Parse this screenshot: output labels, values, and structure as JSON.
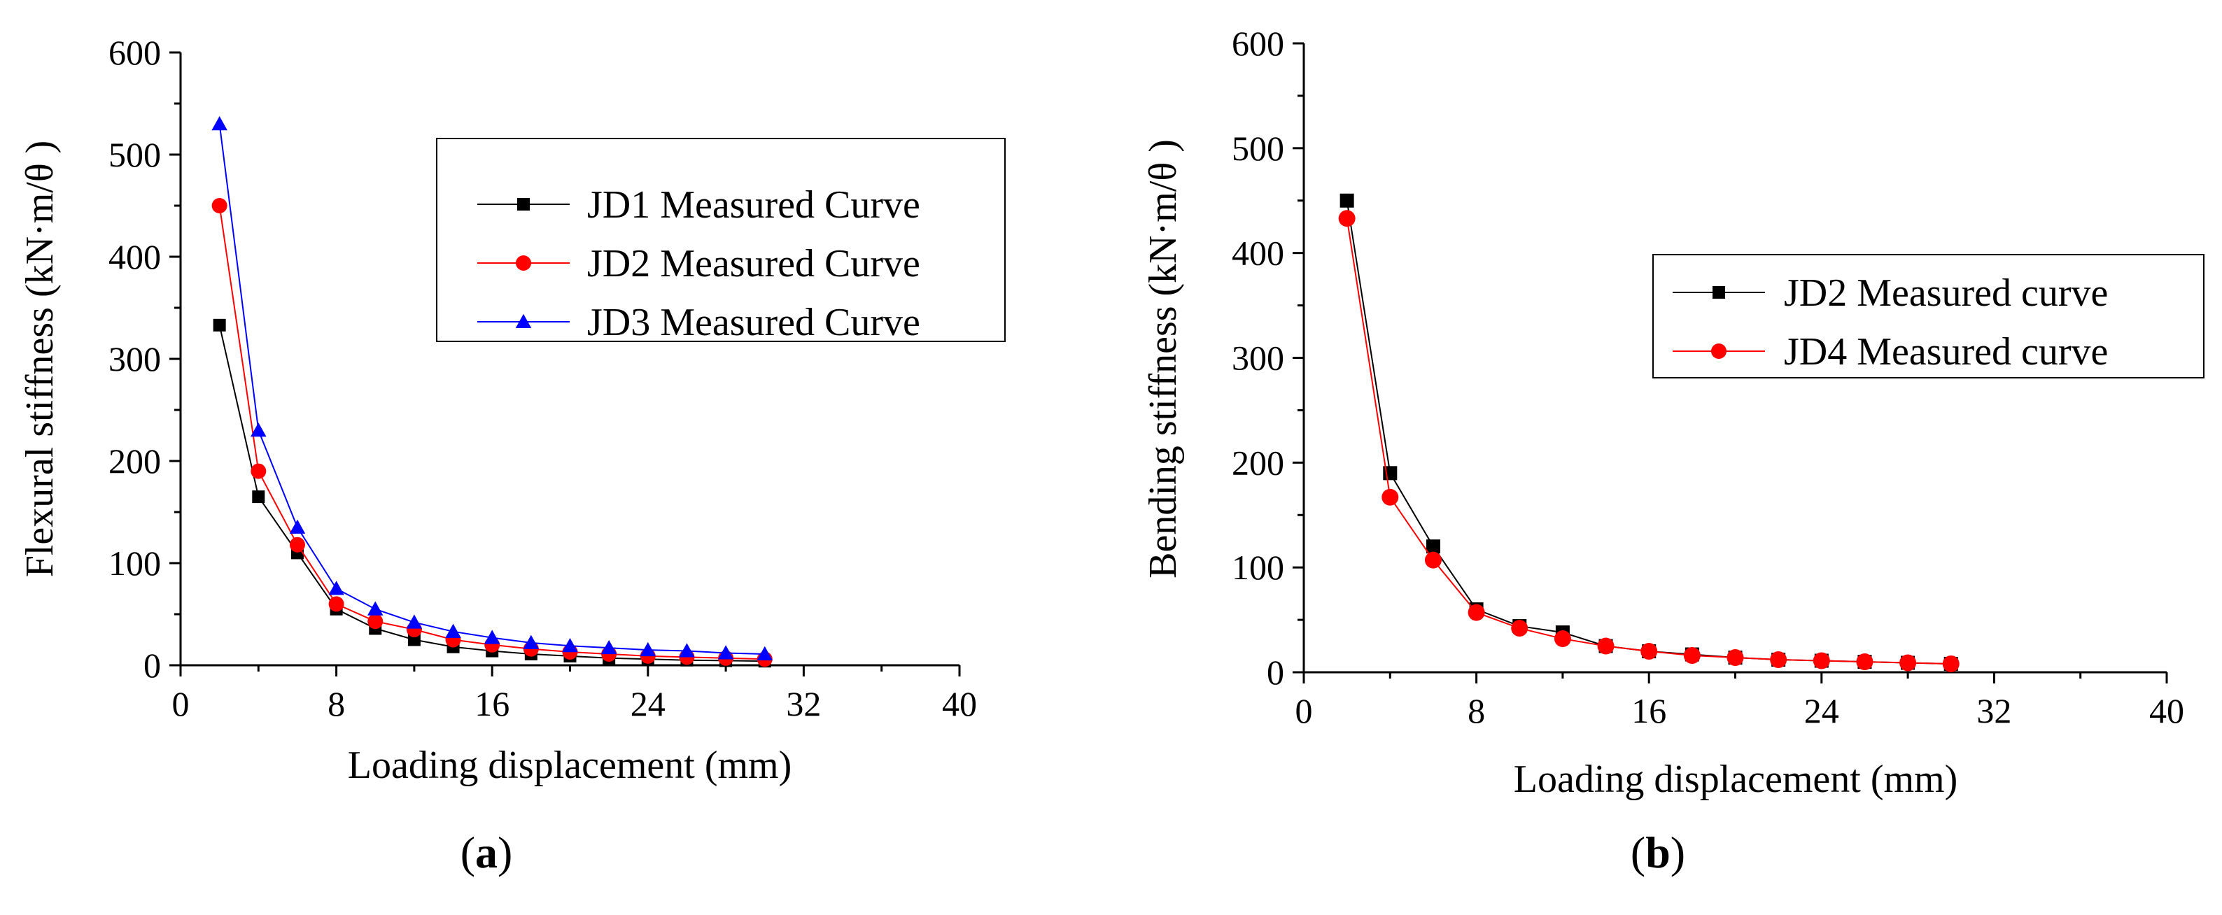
{
  "chart_data": [
    {
      "type": "line",
      "panel_label": "a",
      "xlabel": "Loading displacement (mm)",
      "ylabel": "Flexural stiffness (kN·m/θ )",
      "xlim": [
        0,
        40
      ],
      "ylim": [
        0,
        600
      ],
      "xticks": [
        0,
        8,
        16,
        24,
        32,
        40
      ],
      "yticks": [
        0,
        100,
        200,
        300,
        400,
        500,
        600
      ],
      "legend_position": "top-right",
      "grid": false,
      "x": [
        2,
        4,
        6,
        8,
        10,
        12,
        14,
        16,
        18,
        20,
        22,
        24,
        26,
        28,
        30
      ],
      "series": [
        {
          "name": "JD1 Measured Curve",
          "marker": "square",
          "color": "#000000",
          "values": [
            333,
            165,
            110,
            55,
            36,
            25,
            18,
            14,
            11,
            9,
            7,
            6,
            5,
            4.5,
            4
          ]
        },
        {
          "name": "JD2 Measured Curve",
          "marker": "circle",
          "color": "#ff0000",
          "values": [
            450,
            190,
            118,
            60,
            43,
            35,
            25,
            20,
            16,
            13,
            11,
            9,
            8,
            7,
            6
          ]
        },
        {
          "name": "JD3 Measured Curve",
          "marker": "triangle",
          "color": "#0000ff",
          "values": [
            530,
            230,
            135,
            75,
            55,
            42,
            33,
            27,
            22,
            19,
            17,
            15,
            14,
            12,
            11
          ]
        }
      ]
    },
    {
      "type": "line",
      "panel_label": "b",
      "xlabel": "Loading displacement (mm)",
      "ylabel": "Bending stiffness (kN·m/θ )",
      "xlim": [
        0,
        40
      ],
      "ylim": [
        0,
        600
      ],
      "xticks": [
        0,
        8,
        16,
        24,
        32,
        40
      ],
      "yticks": [
        0,
        100,
        200,
        300,
        400,
        500,
        600
      ],
      "legend_position": "top-right",
      "grid": false,
      "x": [
        2,
        4,
        6,
        8,
        10,
        12,
        14,
        16,
        18,
        20,
        22,
        24,
        26,
        28,
        30
      ],
      "series": [
        {
          "name": "JD2 Measured curve",
          "marker": "square",
          "color": "#000000",
          "values": [
            450,
            190,
            120,
            60,
            44,
            38,
            25,
            20,
            17,
            14,
            12,
            11,
            10,
            9,
            8
          ]
        },
        {
          "name": "JD4 Measured curve",
          "marker": "circle",
          "color": "#ff0000",
          "values": [
            433,
            167,
            107,
            57,
            42,
            32,
            25,
            20,
            16,
            14,
            12,
            11,
            10,
            9,
            8
          ]
        }
      ]
    }
  ]
}
